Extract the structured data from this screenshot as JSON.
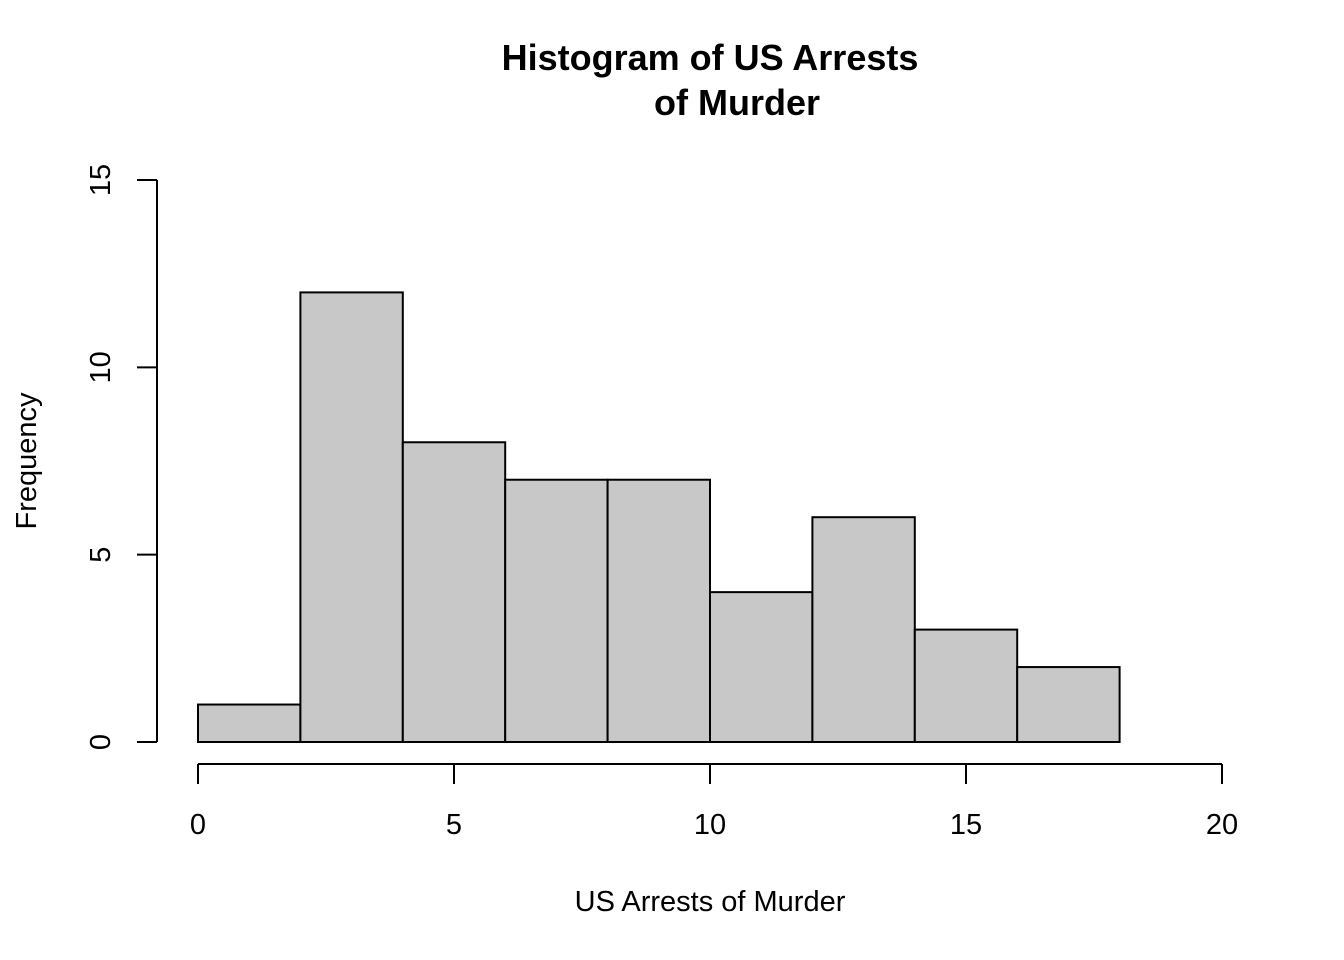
{
  "chart_data": {
    "type": "bar",
    "title_line1": "Histogram of US Arrests",
    "title_line2": "of Murder",
    "xlabel": "US Arrests of Murder",
    "ylabel": "Frequency",
    "bin_edges": [
      0,
      2,
      4,
      6,
      8,
      10,
      12,
      14,
      16,
      18
    ],
    "values": [
      1,
      12,
      8,
      7,
      7,
      4,
      6,
      3,
      2
    ],
    "xlim": [
      0,
      20
    ],
    "ylim": [
      0,
      15
    ],
    "x_ticks": [
      0,
      5,
      10,
      15,
      20
    ],
    "y_ticks": [
      0,
      5,
      10,
      15
    ],
    "x_tick_labels": [
      "0",
      "5",
      "10",
      "15",
      "20"
    ],
    "y_tick_labels": [
      "0",
      "5",
      "10",
      "15"
    ],
    "bar_fill": "#c8c8c8",
    "bar_stroke": "#000000",
    "grid": false
  }
}
